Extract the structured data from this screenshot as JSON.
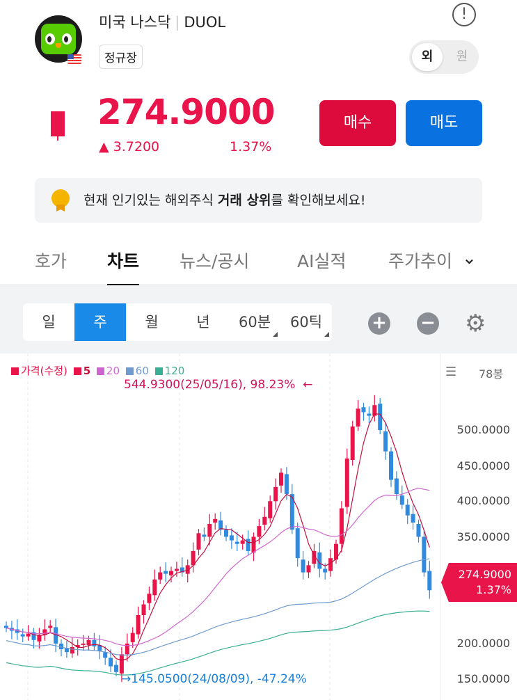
{
  "header": {
    "market": "미국 나스닥",
    "ticker": "DUOL",
    "session": "정규장",
    "currency_toggle": [
      "외",
      "원"
    ],
    "info_icon": "info-icon"
  },
  "quote": {
    "price": "274.9000",
    "change": "▲ 3.7200",
    "change_pct": "1.37%",
    "buy": "매수",
    "sell": "매도"
  },
  "banner": {
    "pre": "현재 인기있는 해외주식 ",
    "bold": "거래 상위",
    "post": "를 확인해보세요!"
  },
  "tabs": [
    "호가",
    "차트",
    "뉴스/공시",
    "AI실적",
    "주가추이"
  ],
  "toolbar": {
    "periods": [
      "일",
      "주",
      "월",
      "년",
      "60분",
      "60틱"
    ],
    "active": "주"
  },
  "colors": {
    "up": "#e8144a",
    "down": "#2f8ae0",
    "ma5": "#c4103e",
    "ma20": "#cf66cf",
    "ma60": "#6f9bd1",
    "ma120": "#3aaf93"
  },
  "chart_data": {
    "type": "candlestick",
    "period": "weekly",
    "bar_count_label": "78봉",
    "legend": [
      {
        "name": "가격(수정)",
        "color": "#e8144a"
      },
      {
        "name": "5",
        "color": "#e8144a"
      },
      {
        "name": "20",
        "color": "#cf66cf"
      },
      {
        "name": "60",
        "color": "#6f9bd1"
      },
      {
        "name": "120",
        "color": "#3aaf93"
      }
    ],
    "high_annotation": "544.9300(25/05/16), 98.23%",
    "low_annotation": "145.0500(24/08/09), -47.24%",
    "yticks": [
      "500.0000",
      "450.0000",
      "400.0000",
      "350.0000",
      "200.0000",
      "150.0000"
    ],
    "ytick_values": [
      500,
      450,
      400,
      350,
      200,
      150
    ],
    "ylim": [
      130,
      570
    ],
    "current": {
      "price": "274.9000",
      "pct": "1.37%"
    },
    "closes": [
      222,
      218,
      215,
      210,
      214,
      205,
      212,
      220,
      225,
      200,
      192,
      188,
      195,
      198,
      200,
      205,
      196,
      190,
      180,
      168,
      160,
      185,
      200,
      215,
      240,
      255,
      270,
      290,
      300,
      298,
      302,
      305,
      300,
      310,
      330,
      355,
      350,
      368,
      375,
      360,
      350,
      345,
      340,
      345,
      330,
      350,
      365,
      378,
      400,
      420,
      440,
      410,
      360,
      320,
      300,
      310,
      330,
      305,
      300,
      320,
      340,
      390,
      460,
      505,
      530,
      525,
      520,
      535,
      500,
      470,
      430,
      410,
      395,
      380,
      370,
      350,
      300,
      274.9
    ]
  }
}
